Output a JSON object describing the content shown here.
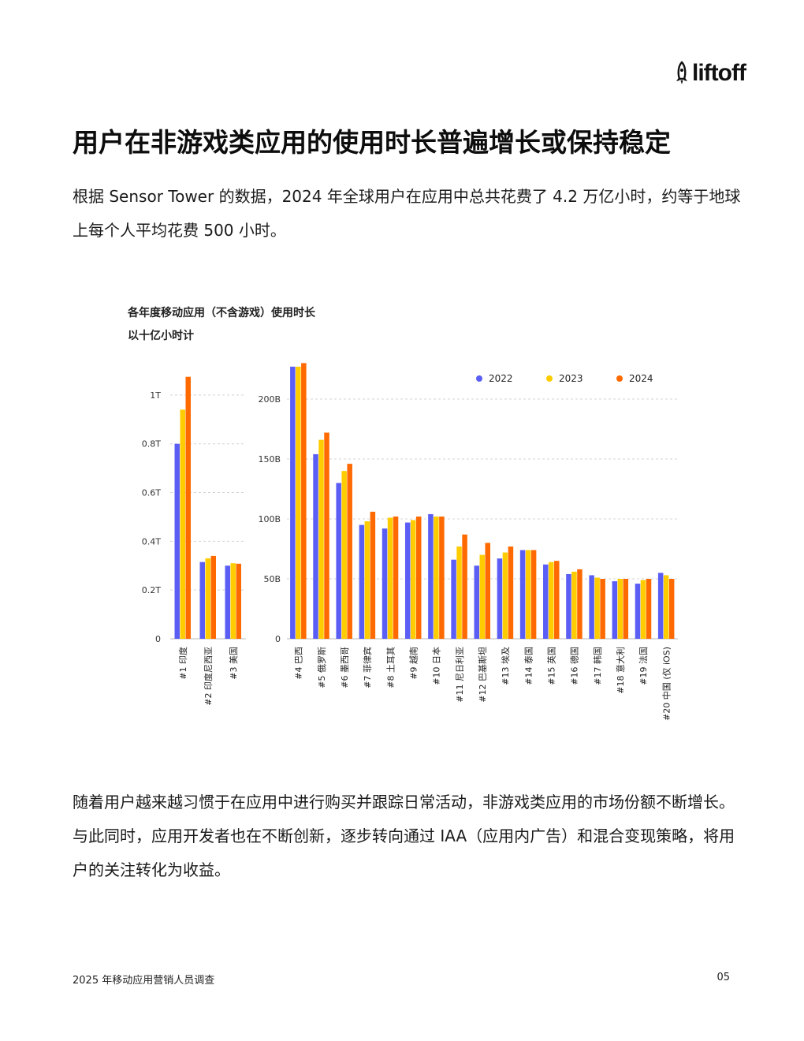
{
  "brand": {
    "name": "liftoff",
    "logo_icon": "rocket-icon"
  },
  "page": {
    "title": "用户在非游戏类应用的使用时长普遍增长或保持稳定",
    "intro": "根据 Sensor Tower 的数据，2024 年全球用户在应用中总共花费了 4.2 万亿小时，约等于地球上每个人平均花费 500 小时。",
    "outro": "随着用户越来越习惯于在应用中进行购买并跟踪日常活动，非游戏类应用的市场份额不断增长。与此同时，应用开发者也在不断创新，逐步转向通过 IAA（应用内广告）和混合变现策略，将用户的关注转化为收益。"
  },
  "footer": {
    "left": "2025 年移动应用营销人员调查",
    "page_number": "05"
  },
  "chart_data": [
    {
      "type": "bar",
      "title": "各年度移动应用（不含游戏）使用时长",
      "subtitle": "以十亿小时计",
      "unit": "billion hours",
      "categories": [
        "#1 印度",
        "#2 印度尼西亚",
        "#3 美国"
      ],
      "series": [
        {
          "name": "2022",
          "color": "#5b5ef4",
          "values": [
            800,
            315,
            300
          ]
        },
        {
          "name": "2023",
          "color": "#ffcc00",
          "values": [
            940,
            330,
            310
          ]
        },
        {
          "name": "2024",
          "color": "#ff6a00",
          "values": [
            1075,
            340,
            308
          ]
        }
      ],
      "yticks": [
        {
          "value": 0,
          "label": "0"
        },
        {
          "value": 200,
          "label": "0.2T"
        },
        {
          "value": 400,
          "label": "0.4T"
        },
        {
          "value": 600,
          "label": "0.6T"
        },
        {
          "value": 800,
          "label": "0.8T"
        },
        {
          "value": 1000,
          "label": "1T"
        }
      ],
      "ylim": [
        0,
        1100
      ],
      "grid": true
    },
    {
      "type": "bar",
      "unit": "billion hours",
      "categories": [
        "#4 巴西",
        "#5 俄罗斯",
        "#6 墨西哥",
        "#7 菲律宾",
        "#8 土耳其",
        "#9 越南",
        "#10 日本",
        "#11 尼日利亚",
        "#12 巴基斯坦",
        "#13 埃及",
        "#14 泰国",
        "#15 英国",
        "#16 德国",
        "#17 韩国",
        "#18 意大利",
        "#19 法国",
        "#20 中国 (仅 iOS)"
      ],
      "series": [
        {
          "name": "2022",
          "color": "#5b5ef4",
          "values": [
            227,
            154,
            130,
            95,
            92,
            97,
            104,
            66,
            61,
            67,
            74,
            62,
            54,
            53,
            48,
            46,
            55
          ]
        },
        {
          "name": "2023",
          "color": "#ffcc00",
          "values": [
            227,
            166,
            140,
            98,
            101,
            99,
            102,
            77,
            70,
            72,
            74,
            64,
            56,
            51,
            50,
            49,
            53
          ]
        },
        {
          "name": "2024",
          "color": "#ff6a00",
          "values": [
            230,
            172,
            146,
            106,
            102,
            102,
            102,
            87,
            80,
            77,
            74,
            65,
            58,
            50,
            50,
            50,
            50
          ]
        }
      ],
      "yticks": [
        {
          "value": 0,
          "label": "0"
        },
        {
          "value": 50,
          "label": "50B"
        },
        {
          "value": 100,
          "label": "100B"
        },
        {
          "value": 150,
          "label": "150B"
        },
        {
          "value": 200,
          "label": "200B"
        }
      ],
      "ylim": [
        0,
        225
      ],
      "legend_position": "top-right",
      "grid": true
    }
  ]
}
